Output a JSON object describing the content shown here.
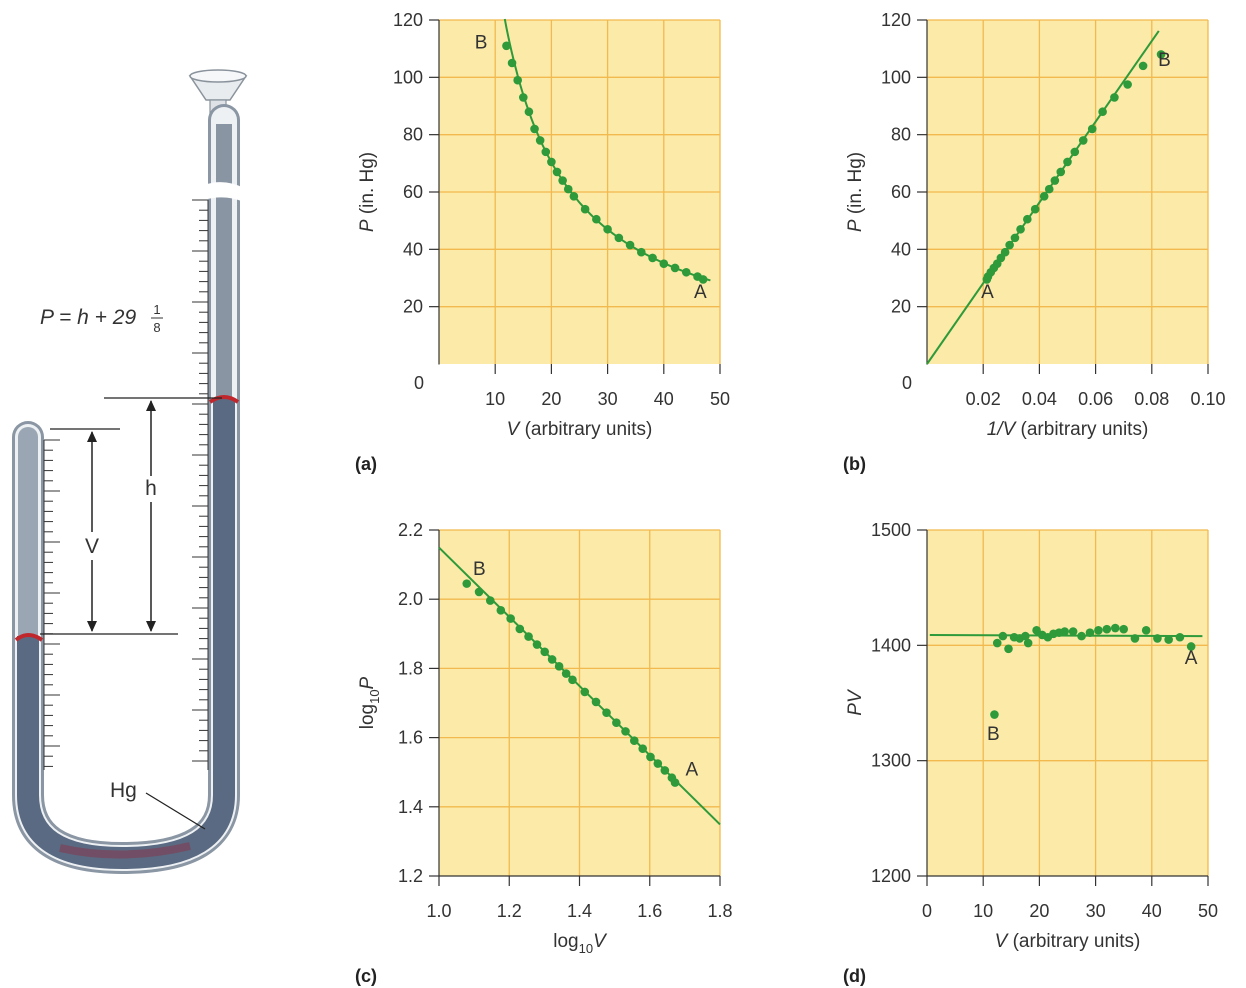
{
  "apparatus": {
    "formula": {
      "lhs": "P = h + 29",
      "num": "1",
      "den": "8"
    },
    "labels": {
      "h": "h",
      "v": "V",
      "hg": "Hg"
    }
  },
  "colors": {
    "plot_bg": "#fbeaa8",
    "grid": "#f2b94e",
    "series": "#2e9a3a",
    "tube": "#6f7d8c",
    "tube_glass": "#dfe4ea",
    "mercury_meniscus": "#c0272d"
  },
  "chart_data": [
    {
      "id": "a",
      "type": "scatter",
      "panel_label": "(a)",
      "xlabel": {
        "var": "V",
        "rest": " (arbitrary units)"
      },
      "ylabel": {
        "var": "P",
        "rest": " (in. Hg)"
      },
      "xlim": [
        0,
        50
      ],
      "ylim": [
        0,
        120
      ],
      "xticks": [
        10,
        20,
        30,
        40,
        50
      ],
      "yticks": [
        20,
        40,
        60,
        80,
        100,
        120
      ],
      "origin_label": "0",
      "grid": true,
      "fit": "hyperbola PV = 1408",
      "point_labels": [
        {
          "text": "B",
          "x": 7.5,
          "y": 110
        },
        {
          "text": "A",
          "x": 46.5,
          "y": 23
        }
      ],
      "points": [
        [
          12,
          111
        ],
        [
          13,
          105
        ],
        [
          14,
          99
        ],
        [
          15,
          93
        ],
        [
          16,
          88
        ],
        [
          17,
          82
        ],
        [
          18,
          78
        ],
        [
          19,
          74
        ],
        [
          20,
          70.5
        ],
        [
          21,
          67
        ],
        [
          22,
          64
        ],
        [
          23,
          61
        ],
        [
          24,
          58.5
        ],
        [
          26,
          54
        ],
        [
          28,
          50.5
        ],
        [
          30,
          47
        ],
        [
          32,
          44
        ],
        [
          34,
          41.5
        ],
        [
          36,
          39
        ],
        [
          38,
          37
        ],
        [
          40,
          35
        ],
        [
          42,
          33.5
        ],
        [
          44,
          32
        ],
        [
          46,
          30.5
        ],
        [
          47,
          29.5
        ]
      ]
    },
    {
      "id": "b",
      "type": "scatter",
      "panel_label": "(b)",
      "xlabel": {
        "var": "1/V",
        "rest": " (arbitrary units)"
      },
      "ylabel": {
        "var": "P",
        "rest": " (in. Hg)"
      },
      "xlim": [
        0,
        0.1
      ],
      "ylim": [
        0,
        120
      ],
      "xticks": [
        0.02,
        0.04,
        0.06,
        0.08,
        0.1
      ],
      "xtick_labels": [
        "0.02",
        "0.04",
        "0.06",
        "0.08",
        "0.10"
      ],
      "yticks": [
        20,
        40,
        60,
        80,
        100,
        120
      ],
      "origin_label": "0",
      "grid": true,
      "fit": "line P = 1408 / V",
      "point_labels": [
        {
          "text": "A",
          "x": 0.0215,
          "y": 23
        },
        {
          "text": "B",
          "x": 0.0845,
          "y": 104
        }
      ],
      "points": [
        [
          0.0213,
          29.5
        ],
        [
          0.0217,
          30.5
        ],
        [
          0.0227,
          32
        ],
        [
          0.0238,
          33.5
        ],
        [
          0.025,
          35
        ],
        [
          0.0263,
          37
        ],
        [
          0.0278,
          39
        ],
        [
          0.0294,
          41.5
        ],
        [
          0.0313,
          44
        ],
        [
          0.0333,
          47
        ],
        [
          0.0357,
          50.5
        ],
        [
          0.0385,
          54
        ],
        [
          0.0417,
          58.5
        ],
        [
          0.0435,
          61
        ],
        [
          0.0455,
          64
        ],
        [
          0.0476,
          67
        ],
        [
          0.05,
          70.5
        ],
        [
          0.0526,
          74
        ],
        [
          0.0556,
          78
        ],
        [
          0.0588,
          82
        ],
        [
          0.0625,
          88
        ],
        [
          0.0667,
          93
        ],
        [
          0.0714,
          97.5
        ],
        [
          0.0769,
          104
        ],
        [
          0.0833,
          108
        ]
      ]
    },
    {
      "id": "c",
      "type": "scatter",
      "panel_label": "(c)",
      "xlabel": {
        "var": "log",
        "sub": "10",
        "rest": "V"
      },
      "ylabel": {
        "var": "log",
        "sub": "10",
        "rest": "P"
      },
      "xlim": [
        1.0,
        1.8
      ],
      "ylim": [
        1.2,
        2.2
      ],
      "xticks": [
        1.0,
        1.2,
        1.4,
        1.6,
        1.8
      ],
      "xtick_labels": [
        "1.0",
        "1.2",
        "1.4",
        "1.6",
        "1.8"
      ],
      "yticks": [
        1.2,
        1.4,
        1.6,
        1.8,
        2.0,
        2.2
      ],
      "ytick_labels": [
        "1.2",
        "1.4",
        "1.6",
        "1.8",
        "2.0",
        "2.2"
      ],
      "grid": true,
      "fit": "line log P = 3.149 - log V",
      "point_labels": [
        {
          "text": "B",
          "x": 1.115,
          "y": 2.07
        },
        {
          "text": "A",
          "x": 1.72,
          "y": 1.49
        }
      ],
      "points": [
        [
          1.079,
          2.045
        ],
        [
          1.114,
          2.021
        ],
        [
          1.146,
          1.996
        ],
        [
          1.176,
          1.968
        ],
        [
          1.204,
          1.944
        ],
        [
          1.23,
          1.914
        ],
        [
          1.255,
          1.892
        ],
        [
          1.279,
          1.869
        ],
        [
          1.301,
          1.848
        ],
        [
          1.322,
          1.826
        ],
        [
          1.342,
          1.806
        ],
        [
          1.362,
          1.785
        ],
        [
          1.38,
          1.767
        ],
        [
          1.415,
          1.732
        ],
        [
          1.447,
          1.703
        ],
        [
          1.477,
          1.672
        ],
        [
          1.505,
          1.643
        ],
        [
          1.531,
          1.618
        ],
        [
          1.556,
          1.591
        ],
        [
          1.58,
          1.568
        ],
        [
          1.602,
          1.544
        ],
        [
          1.623,
          1.525
        ],
        [
          1.643,
          1.505
        ],
        [
          1.663,
          1.484
        ],
        [
          1.672,
          1.47
        ]
      ]
    },
    {
      "id": "d",
      "type": "scatter",
      "panel_label": "(d)",
      "xlabel": {
        "var": "V",
        "rest": " (arbitrary units)"
      },
      "ylabel": {
        "var": "PV",
        "rest": ""
      },
      "xlim": [
        0,
        50
      ],
      "ylim": [
        1200,
        1500
      ],
      "xticks": [
        0,
        10,
        20,
        30,
        40,
        50
      ],
      "yticks": [
        1200,
        1300,
        1400,
        1500
      ],
      "grid": true,
      "fit": "horizontal line PV = 1408",
      "point_labels": [
        {
          "text": "B",
          "x": 11.8,
          "y": 1318
        },
        {
          "text": "A",
          "x": 47,
          "y": 1384
        }
      ],
      "points": [
        [
          12,
          1340
        ],
        [
          12.5,
          1402
        ],
        [
          13.5,
          1408
        ],
        [
          14.5,
          1397
        ],
        [
          15.5,
          1407
        ],
        [
          16.5,
          1406
        ],
        [
          17.5,
          1408
        ],
        [
          18,
          1402
        ],
        [
          19.5,
          1413
        ],
        [
          20.5,
          1409
        ],
        [
          21.5,
          1407
        ],
        [
          22.5,
          1410
        ],
        [
          23.5,
          1411
        ],
        [
          24.5,
          1412
        ],
        [
          26,
          1412
        ],
        [
          27.5,
          1408
        ],
        [
          29,
          1411
        ],
        [
          30.5,
          1413
        ],
        [
          32,
          1414
        ],
        [
          33.5,
          1415
        ],
        [
          35,
          1414
        ],
        [
          37,
          1406
        ],
        [
          39,
          1413
        ],
        [
          41,
          1406
        ],
        [
          43,
          1405
        ],
        [
          45,
          1407
        ],
        [
          47,
          1399
        ]
      ]
    }
  ]
}
